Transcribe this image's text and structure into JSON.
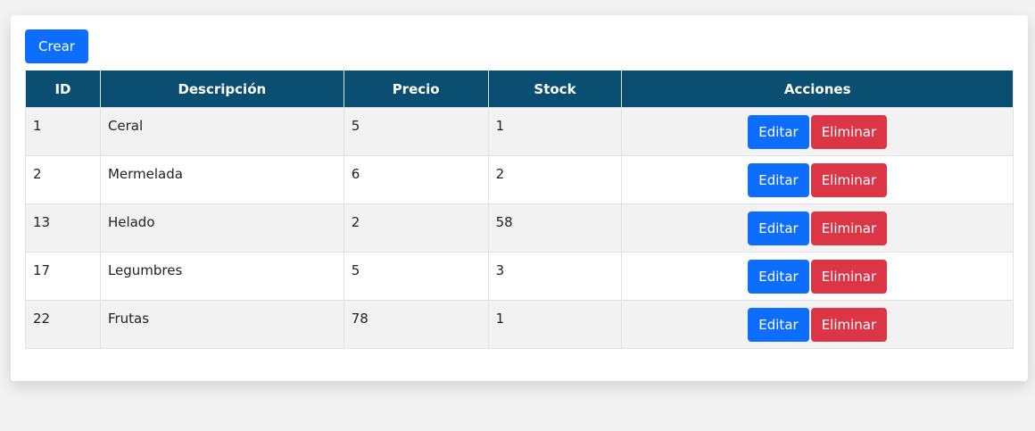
{
  "toolbar": {
    "create_label": "Crear"
  },
  "table": {
    "headers": {
      "id": "ID",
      "description": "Descripción",
      "price": "Precio",
      "stock": "Stock",
      "actions": "Acciones"
    },
    "rows": [
      {
        "id": "1",
        "description": "Ceral",
        "price": "5",
        "stock": "1",
        "edit": "Editar",
        "delete": "Eliminar"
      },
      {
        "id": "2",
        "description": "Mermelada",
        "price": "6",
        "stock": "2",
        "edit": "Editar",
        "delete": "Eliminar"
      },
      {
        "id": "13",
        "description": "Helado",
        "price": "2",
        "stock": "58",
        "edit": "Editar",
        "delete": "Eliminar"
      },
      {
        "id": "17",
        "description": "Legumbres",
        "price": "5",
        "stock": "3",
        "edit": "Editar",
        "delete": "Eliminar"
      },
      {
        "id": "22",
        "description": "Frutas",
        "price": "78",
        "stock": "1",
        "edit": "Editar",
        "delete": "Eliminar"
      }
    ]
  },
  "colors": {
    "header_bg": "#0a4f72",
    "primary": "#0d6efd",
    "danger": "#dc3545"
  }
}
